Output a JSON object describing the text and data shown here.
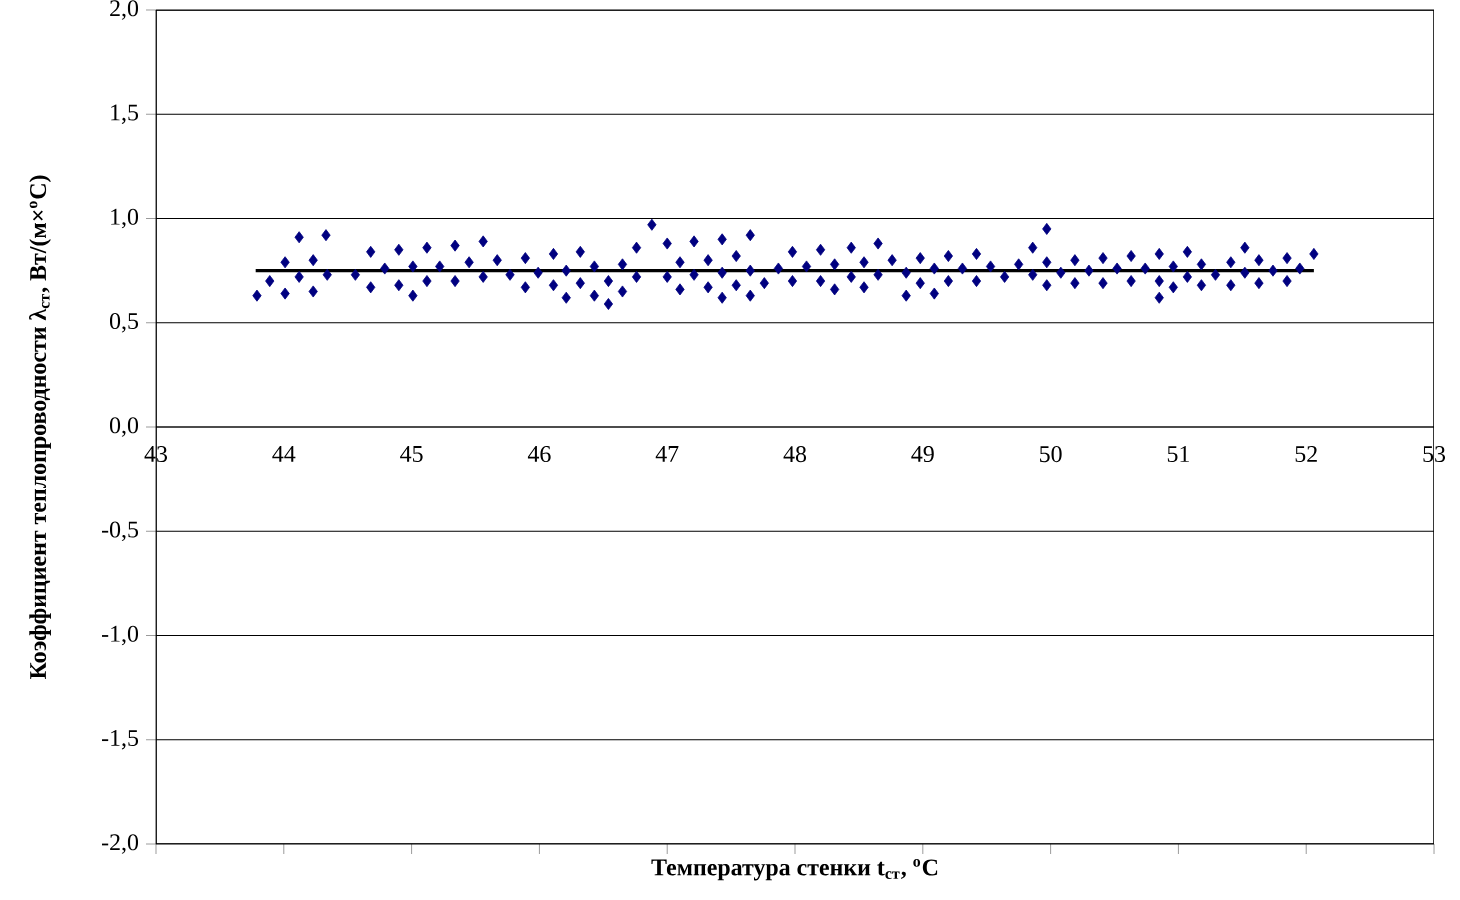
{
  "chart_data": {
    "type": "scatter",
    "xlabel": "Температура стенки t$_{ст}$, $^{o}$С",
    "ylabel": "Коэффициент теплопроводности λ$_{ст}$, Вт/(м×$^{o}$С)",
    "xlim": [
      43,
      53
    ],
    "xticks": [
      43,
      44,
      45,
      46,
      47,
      48,
      49,
      50,
      51,
      52,
      53
    ],
    "ylim": [
      -2,
      2
    ],
    "yticks": [
      {
        "value": -2,
        "label": "-2,0"
      },
      {
        "value": -1.5,
        "label": "-1,5"
      },
      {
        "value": -1,
        "label": "-1,0"
      },
      {
        "value": -0.5,
        "label": "-0,5"
      },
      {
        "value": 0,
        "label": "0,0"
      },
      {
        "value": 0.5,
        "label": "0,5"
      },
      {
        "value": 1,
        "label": "1,0"
      },
      {
        "value": 1.5,
        "label": "1,5"
      },
      {
        "value": 2,
        "label": "2,0"
      }
    ],
    "grid": "y",
    "marker": "diamond",
    "series": [
      {
        "color": "#000080",
        "x": [
          43.79,
          43.89,
          44.01,
          44.01,
          44.12,
          44.12,
          44.23,
          44.23,
          44.33,
          44.34,
          44.56,
          44.68,
          44.68,
          44.79,
          44.9,
          44.9,
          45.01,
          45.01,
          45.12,
          45.12,
          45.22,
          45.34,
          45.34,
          45.45,
          45.56,
          45.56,
          45.67,
          45.77,
          45.89,
          45.89,
          45.99,
          46.11,
          46.11,
          46.21,
          46.21,
          46.32,
          46.32,
          46.43,
          46.43,
          46.54,
          46.54,
          46.65,
          46.65,
          46.76,
          46.76,
          46.88,
          47.0,
          47.0,
          47.1,
          47.1,
          47.21,
          47.21,
          47.32,
          47.32,
          47.43,
          47.43,
          47.43,
          47.54,
          47.54,
          47.65,
          47.65,
          47.65,
          47.76,
          47.87,
          47.98,
          47.98,
          48.09,
          48.2,
          48.2,
          48.31,
          48.31,
          48.44,
          48.44,
          48.54,
          48.54,
          48.65,
          48.65,
          48.76,
          48.87,
          48.87,
          48.98,
          48.98,
          49.09,
          49.09,
          49.2,
          49.2,
          49.31,
          49.42,
          49.42,
          49.53,
          49.64,
          49.75,
          49.86,
          49.86,
          49.97,
          49.97,
          49.97,
          50.08,
          50.19,
          50.19,
          50.3,
          50.41,
          50.41,
          50.52,
          50.63,
          50.63,
          50.74,
          50.85,
          50.85,
          50.85,
          50.96,
          50.96,
          51.07,
          51.07,
          51.18,
          51.18,
          51.29,
          51.41,
          51.41,
          51.52,
          51.52,
          51.63,
          51.63,
          51.74,
          51.85,
          51.85,
          51.95,
          52.06
        ],
        "values": [
          0.63,
          0.7,
          0.79,
          0.64,
          0.91,
          0.72,
          0.8,
          0.65,
          0.92,
          0.73,
          0.73,
          0.84,
          0.67,
          0.76,
          0.85,
          0.68,
          0.77,
          0.63,
          0.86,
          0.7,
          0.77,
          0.87,
          0.7,
          0.79,
          0.89,
          0.72,
          0.8,
          0.73,
          0.81,
          0.67,
          0.74,
          0.83,
          0.68,
          0.75,
          0.62,
          0.84,
          0.69,
          0.77,
          0.63,
          0.7,
          0.59,
          0.78,
          0.65,
          0.86,
          0.72,
          0.97,
          0.88,
          0.72,
          0.79,
          0.66,
          0.89,
          0.73,
          0.8,
          0.67,
          0.9,
          0.74,
          0.62,
          0.82,
          0.68,
          0.92,
          0.75,
          0.63,
          0.69,
          0.76,
          0.84,
          0.7,
          0.77,
          0.85,
          0.7,
          0.78,
          0.66,
          0.86,
          0.72,
          0.79,
          0.67,
          0.88,
          0.73,
          0.8,
          0.74,
          0.63,
          0.81,
          0.69,
          0.76,
          0.64,
          0.82,
          0.7,
          0.76,
          0.83,
          0.7,
          0.77,
          0.72,
          0.78,
          0.86,
          0.73,
          0.95,
          0.79,
          0.68,
          0.74,
          0.8,
          0.69,
          0.75,
          0.81,
          0.69,
          0.76,
          0.82,
          0.7,
          0.76,
          0.83,
          0.7,
          0.62,
          0.77,
          0.67,
          0.84,
          0.72,
          0.78,
          0.68,
          0.73,
          0.79,
          0.68,
          0.86,
          0.74,
          0.8,
          0.69,
          0.75,
          0.81,
          0.7,
          0.76,
          0.83
        ]
      },
      {
        "type": "line",
        "color": "#000000",
        "marker": "none",
        "line_style": "solid",
        "x": [
          43.78,
          52.06
        ],
        "values": [
          0.75,
          0.75
        ]
      }
    ]
  }
}
